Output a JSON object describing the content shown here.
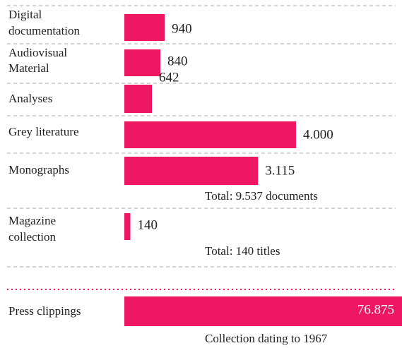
{
  "chart_data": {
    "type": "bar",
    "categories": [
      "Digital\ndocumentation",
      "Audiovisual\nMaterial",
      "Analyses",
      "Grey literature",
      "Monographs",
      "Magazine\ncollection",
      "Press clippings"
    ],
    "values": [
      940,
      840,
      642,
      4000,
      3115,
      140,
      76875
    ],
    "value_labels": [
      "940",
      "840",
      "642",
      "4.000",
      "3.115",
      "140",
      "76.875"
    ],
    "color": "#ee1762",
    "annotations": [
      "Total: 9.537 documents",
      "Total: 140 titles",
      "Collection dating to 1967"
    ]
  }
}
